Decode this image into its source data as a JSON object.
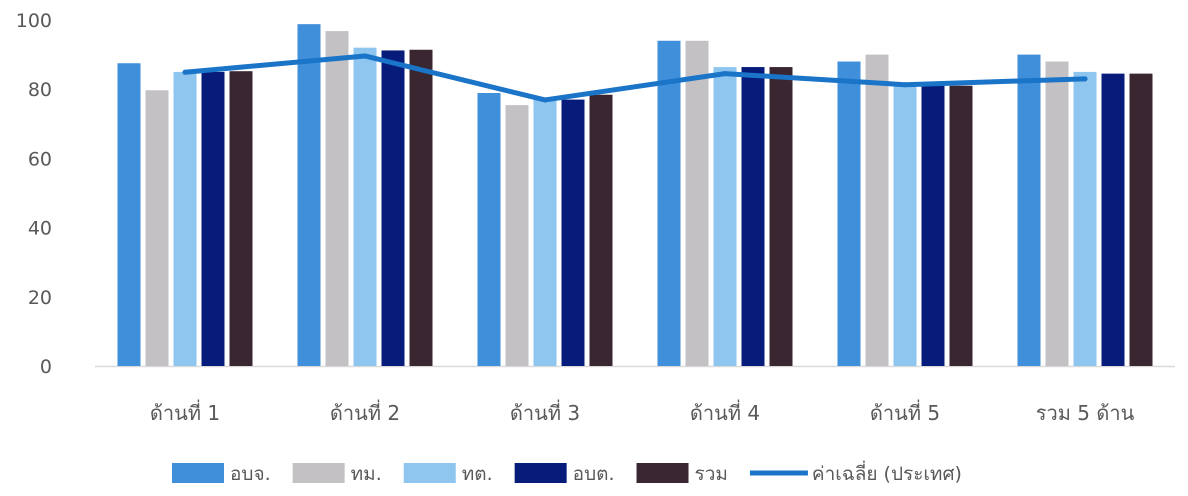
{
  "chart_data": {
    "type": "bar",
    "title": "",
    "xlabel": "",
    "ylabel": "",
    "categories": [
      "ด้านที่ 1",
      "ด้านที่ 2",
      "ด้านที่ 3",
      "ด้านที่ 4",
      "ด้านที่ 5",
      "รวม 5 ด้าน"
    ],
    "ylim": [
      0,
      100
    ],
    "yticks": [
      0,
      20,
      40,
      60,
      80,
      100
    ],
    "grid": false,
    "legend_position": "bottom",
    "series": [
      {
        "name": "อบจ.",
        "type": "bar",
        "color": "#3f8fdb",
        "values": [
          87.5,
          98.8,
          78.9,
          94.0,
          88.0,
          90.0
        ]
      },
      {
        "name": "ทม.",
        "type": "bar",
        "color": "#c3c1c4",
        "values": [
          79.7,
          96.8,
          75.4,
          94.0,
          90.0,
          88.0
        ]
      },
      {
        "name": "ทต.",
        "type": "bar",
        "color": "#8ec6ef",
        "values": [
          85.0,
          92.0,
          77.0,
          86.4,
          81.0,
          85.0
        ]
      },
      {
        "name": "อบต.",
        "type": "bar",
        "color": "#071b7a",
        "values": [
          85.0,
          91.2,
          77.0,
          86.4,
          81.0,
          84.5
        ]
      },
      {
        "name": "รวม",
        "type": "bar",
        "color": "#3a2631",
        "values": [
          85.2,
          91.4,
          78.4,
          86.4,
          81.0,
          84.5
        ]
      },
      {
        "name": "ค่าเฉลี่ย (ประเทศ)",
        "type": "line",
        "color": "#1a74c7",
        "values": [
          84.9,
          89.6,
          76.9,
          84.5,
          81.3,
          83.0
        ]
      }
    ]
  }
}
